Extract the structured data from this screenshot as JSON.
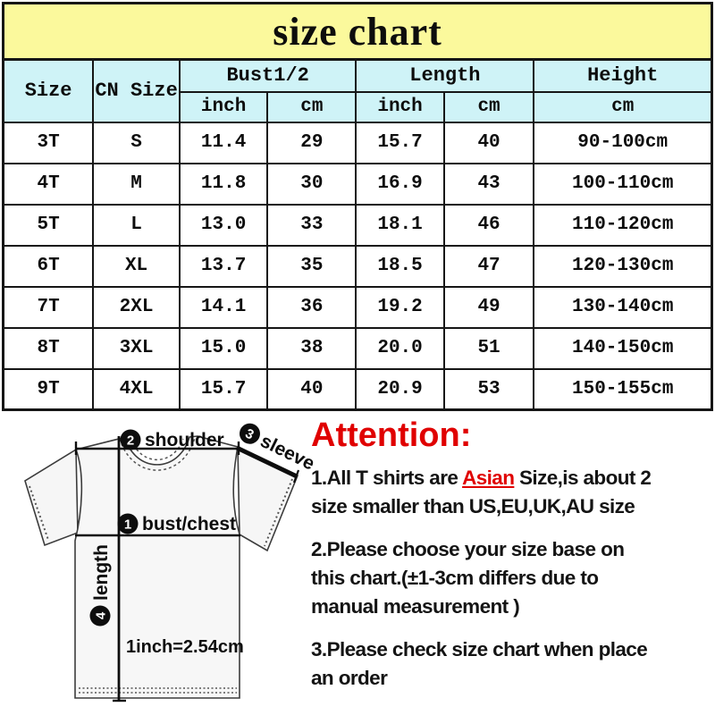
{
  "title": "size chart",
  "colors": {
    "banner_bg": "#fbf99c",
    "header_bg": "#cff3f7",
    "border": "#161616",
    "accent": "#e00000"
  },
  "table": {
    "headers": {
      "size": "Size",
      "cn_size": "CN Size",
      "bust": "Bust1/2",
      "length": "Length",
      "height": "Height",
      "inch": "inch",
      "cm": "cm"
    },
    "rows": [
      [
        "3T",
        "S",
        "11.4",
        "29",
        "15.7",
        "40",
        "90-100cm"
      ],
      [
        "4T",
        "M",
        "11.8",
        "30",
        "16.9",
        "43",
        "100-110cm"
      ],
      [
        "5T",
        "L",
        "13.0",
        "33",
        "18.1",
        "46",
        "110-120cm"
      ],
      [
        "6T",
        "XL",
        "13.7",
        "35",
        "18.5",
        "47",
        "120-130cm"
      ],
      [
        "7T",
        "2XL",
        "14.1",
        "36",
        "19.2",
        "49",
        "130-140cm"
      ],
      [
        "8T",
        "3XL",
        "15.0",
        "38",
        "20.0",
        "51",
        "140-150cm"
      ],
      [
        "9T",
        "4XL",
        "15.7",
        "40",
        "20.9",
        "53",
        "150-155cm"
      ]
    ]
  },
  "diagram": {
    "labels": {
      "n1": "1",
      "bust": "bust/chest",
      "n2": "2",
      "shoulder": "shoulder",
      "n3": "3",
      "sleeve": "sleeve",
      "n4": "4",
      "length": "length",
      "scale": "1inch=2.54cm"
    }
  },
  "attention": {
    "heading": "Attention:",
    "notes": {
      "n1_parts": [
        {
          "text": "1.All T shirts are "
        },
        {
          "text": "Asian"
        },
        {
          "text": " Size,is about 2\nsize smaller than US,EU,UK,AU size"
        }
      ],
      "n2": "2.Please choose your size base on\nthis chart.(±1-3cm differs due to\nmanual measurement )",
      "n3": "3.Please check size chart when place\nan order"
    }
  }
}
